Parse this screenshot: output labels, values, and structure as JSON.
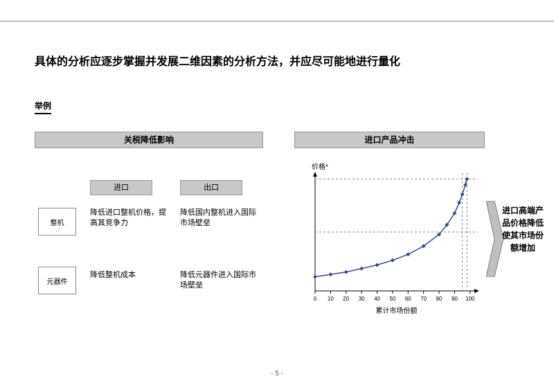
{
  "title": "具体的分析应逐步掌握并发展二维因素的分析方法，并应尽可能地进行量化",
  "example_tag": "举例",
  "left_section": {
    "header": "关税降低影响",
    "col_import": "进口",
    "col_export": "出口",
    "row1_label": "整机",
    "row2_label": "元器件",
    "cell_11": "降低进口整机价格，提高其竞争力",
    "cell_12": "降低国内整机进入国际市场壁垒",
    "cell_21": "降低整机成本",
    "cell_22": "降低元器件进入国际市场壁垒"
  },
  "right_section": {
    "header": "进口产品冲击",
    "chart": {
      "type": "line",
      "y_label": "价格*",
      "x_label": "累计市场份额",
      "xlim": [
        0,
        105
      ],
      "ylim": [
        0,
        100
      ],
      "xticks": [
        0,
        10,
        20,
        30,
        40,
        50,
        60,
        70,
        80,
        90,
        100
      ],
      "points": [
        [
          0,
          12
        ],
        [
          10,
          14
        ],
        [
          20,
          16
        ],
        [
          30,
          19
        ],
        [
          40,
          22
        ],
        [
          50,
          26
        ],
        [
          60,
          31
        ],
        [
          70,
          38
        ],
        [
          80,
          48
        ],
        [
          85,
          56
        ],
        [
          90,
          66
        ],
        [
          93,
          75
        ],
        [
          95,
          82
        ],
        [
          97,
          90
        ],
        [
          98,
          95
        ]
      ],
      "dashed_y": [
        50,
        95
      ],
      "dashed_x": [
        95,
        98
      ],
      "axis_color": "#000000",
      "line_color": "#3a4a8a",
      "marker_color": "#3a4a8a",
      "dashed_color": "#888888",
      "background": "#ffffff",
      "tick_fontsize": 8,
      "label_fontsize": 10
    },
    "arrow_text": "进口高端产品价格降低使其市场份额增加",
    "arrow_fill": "#bfbfbf",
    "arrow_stroke": "#808080"
  },
  "page_number": "- 5 -"
}
